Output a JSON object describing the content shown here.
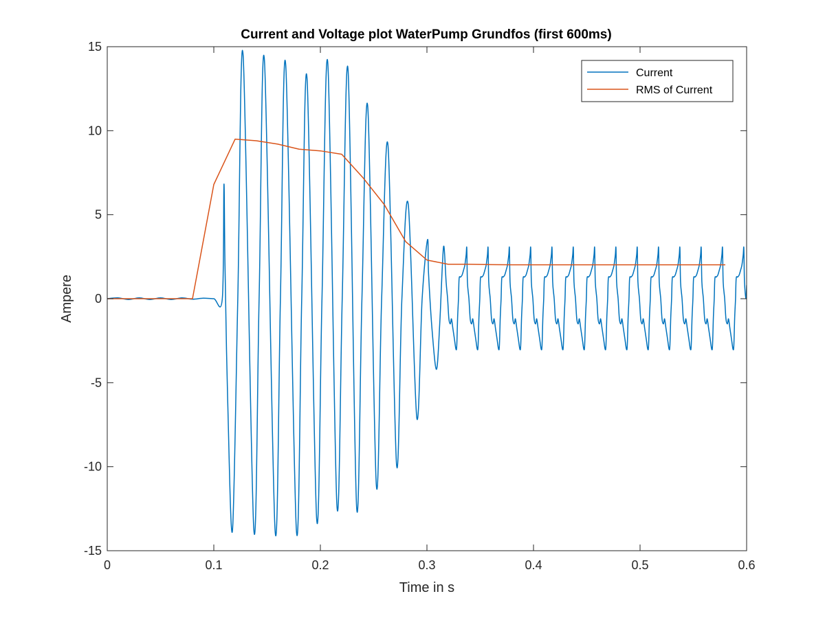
{
  "chart_data": {
    "type": "line",
    "title": "Current and Voltage plot WaterPump Grundfos (first 600ms)",
    "xlabel": "Time in s",
    "ylabel": "Ampere",
    "xlim": [
      0,
      0.6
    ],
    "ylim": [
      -15,
      15
    ],
    "xticks": [
      0,
      0.1,
      0.2,
      0.3,
      0.4,
      0.5,
      0.6
    ],
    "xtick_labels": [
      "0",
      "0.1",
      "0.2",
      "0.3",
      "0.4",
      "0.5",
      "0.6"
    ],
    "yticks": [
      -15,
      -10,
      -5,
      0,
      5,
      10,
      15
    ],
    "ytick_labels": [
      "-15",
      "-10",
      "-5",
      "0",
      "5",
      "10",
      "15"
    ],
    "grid": false,
    "legend_position": "top-right",
    "series": [
      {
        "name": "Current",
        "color": "#0072BD",
        "points": [
          [
            0,
            0
          ],
          [
            0.01,
            0.05
          ],
          [
            0.02,
            -0.05
          ],
          [
            0.03,
            0.05
          ],
          [
            0.04,
            -0.05
          ],
          [
            0.05,
            0.05
          ],
          [
            0.06,
            -0.05
          ],
          [
            0.07,
            0.05
          ],
          [
            0.08,
            -0.03
          ],
          [
            0.09,
            0.03
          ],
          [
            0.1,
            0.0
          ],
          [
            0.108,
            0.02
          ],
          [
            0.1095,
            6.8
          ],
          [
            0.1105,
            2.0
          ],
          [
            0.113,
            -6.0
          ],
          [
            0.1175,
            -13.8
          ],
          [
            0.1225,
            0.0
          ],
          [
            0.1275,
            14.5
          ],
          [
            0.1375,
            -13.7
          ],
          [
            0.1425,
            0.0
          ],
          [
            0.1475,
            14.2
          ],
          [
            0.1575,
            -13.8
          ],
          [
            0.1625,
            0.0
          ],
          [
            0.1675,
            13.9
          ],
          [
            0.1775,
            -13.8
          ],
          [
            0.1825,
            0.0
          ],
          [
            0.1875,
            13.1
          ],
          [
            0.1965,
            -13.1
          ],
          [
            0.2015,
            0.0
          ],
          [
            0.207,
            14.0
          ],
          [
            0.2155,
            -12.3
          ],
          [
            0.2205,
            0.0
          ],
          [
            0.226,
            13.6
          ],
          [
            0.234,
            -12.4
          ],
          [
            0.239,
            0.0
          ],
          [
            0.2445,
            11.4
          ],
          [
            0.2525,
            -11.1
          ],
          [
            0.2575,
            0.0
          ],
          [
            0.2635,
            9.1
          ],
          [
            0.2715,
            -9.9
          ],
          [
            0.2765,
            0.0
          ],
          [
            0.2825,
            5.6
          ],
          [
            0.2905,
            -7.1
          ],
          [
            0.2955,
            0.0
          ],
          [
            0.3005,
            3.5
          ],
          [
            0.3015,
            1.5
          ],
          [
            0.305,
            -2.0
          ],
          [
            0.309,
            -4.2
          ],
          [
            0.312,
            -1.5
          ],
          [
            0.3145,
            2.0
          ],
          [
            0.316,
            3.1
          ],
          [
            0.318,
            1.0
          ]
        ],
        "steady_state": {
          "x_start": 0.318,
          "x_end": 0.6,
          "period": 0.02,
          "peak_max": 3.0,
          "peak_min": -3.0,
          "end_value": 0.8
        }
      },
      {
        "name": "RMS of Current",
        "color": "#D95319",
        "points": [
          [
            0,
            0
          ],
          [
            0.02,
            0.0
          ],
          [
            0.04,
            0.0
          ],
          [
            0.06,
            0.0
          ],
          [
            0.08,
            0.0
          ],
          [
            0.1,
            6.8
          ],
          [
            0.12,
            9.5
          ],
          [
            0.14,
            9.4
          ],
          [
            0.16,
            9.2
          ],
          [
            0.18,
            8.9
          ],
          [
            0.2,
            8.8
          ],
          [
            0.22,
            8.6
          ],
          [
            0.24,
            7.2
          ],
          [
            0.26,
            5.6
          ],
          [
            0.28,
            3.4
          ],
          [
            0.3,
            2.3
          ],
          [
            0.32,
            2.05
          ],
          [
            0.34,
            2.05
          ],
          [
            0.36,
            2.03
          ],
          [
            0.38,
            2.02
          ],
          [
            0.4,
            2.02
          ],
          [
            0.42,
            2.02
          ],
          [
            0.44,
            2.02
          ],
          [
            0.46,
            2.02
          ],
          [
            0.48,
            2.02
          ],
          [
            0.5,
            2.02
          ],
          [
            0.52,
            2.02
          ],
          [
            0.54,
            2.02
          ],
          [
            0.56,
            2.02
          ],
          [
            0.58,
            2.02
          ]
        ]
      }
    ]
  }
}
